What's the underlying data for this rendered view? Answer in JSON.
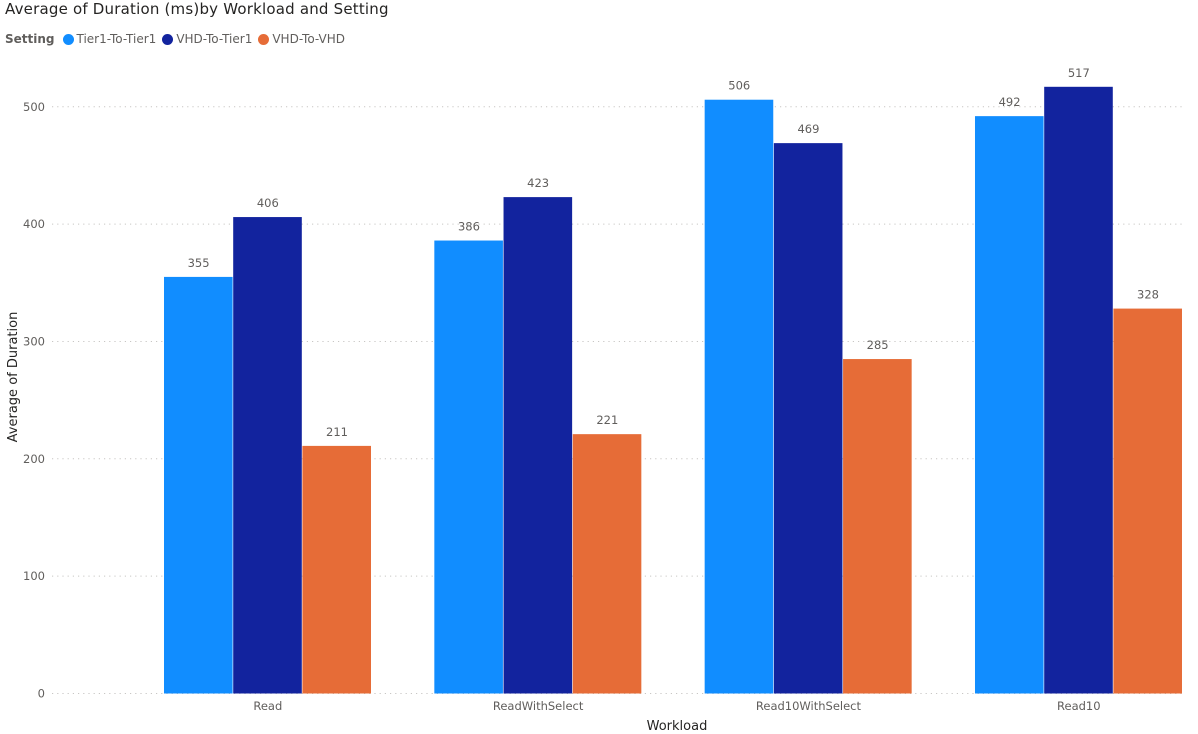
{
  "chart_data": {
    "type": "bar",
    "title": "Average of Duration (ms)by Workload and Setting",
    "legend_title": "Setting",
    "legend_position": "top-left",
    "xlabel": "Workload",
    "ylabel": "Average of Duration",
    "categories": [
      "Read",
      "ReadWithSelect",
      "Read10WithSelect",
      "Read10"
    ],
    "series": [
      {
        "name": "Tier1-To-Tier1",
        "color": "#118dff",
        "values": [
          355,
          386,
          506,
          492
        ]
      },
      {
        "name": "VHD-To-Tier1",
        "color": "#12239e",
        "values": [
          406,
          423,
          469,
          517
        ]
      },
      {
        "name": "VHD-To-VHD",
        "color": "#e66c37",
        "values": [
          211,
          221,
          285,
          328
        ]
      }
    ],
    "yticks": [
      0,
      100,
      200,
      300,
      400,
      500
    ],
    "ylim": [
      0,
      517
    ],
    "grid": true,
    "data_labels": true
  }
}
